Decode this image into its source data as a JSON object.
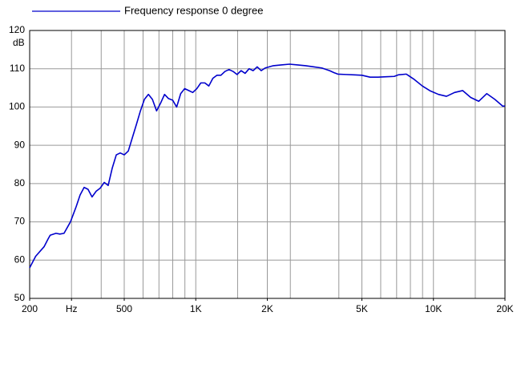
{
  "chart_data": {
    "type": "line",
    "xscale": "log",
    "y_label": "dB",
    "x": [
      200,
      212,
      230,
      239,
      244,
      258,
      268,
      279,
      297,
      314,
      326,
      339,
      352,
      366,
      381,
      396,
      412,
      428,
      445,
      463,
      481,
      500,
      520,
      541,
      563,
      585,
      608,
      632,
      657,
      684,
      711,
      739,
      768,
      799,
      831,
      864,
      898,
      934,
      971,
      1010,
      1050,
      1092,
      1135,
      1180,
      1227,
      1276,
      1327,
      1380,
      1435,
      1492,
      1551,
      1613,
      1677,
      1744,
      1813,
      1885,
      1960,
      2120,
      2290,
      2480,
      2680,
      2900,
      3130,
      3390,
      3660,
      3810,
      3960,
      4280,
      4630,
      5000,
      5410,
      5850,
      6320,
      6840,
      7110,
      7690,
      8310,
      8980,
      9710,
      10500,
      11350,
      12270,
      13270,
      14350,
      15510,
      16770,
      18130,
      19600,
      20000
    ],
    "series": [
      {
        "name": "Frequency response 0 degree",
        "color": "#0000cc",
        "values": [
          58,
          61,
          63.5,
          65.5,
          66.5,
          67,
          66.8,
          67,
          70,
          74,
          77,
          79,
          78.5,
          76.5,
          78,
          78.8,
          80.3,
          79.5,
          84,
          87.5,
          88,
          87.5,
          88.5,
          92,
          95.5,
          99,
          102,
          103.3,
          102,
          99,
          101,
          103.3,
          102.2,
          101.8,
          100,
          103.5,
          104.8,
          104.3,
          103.8,
          104.8,
          106.3,
          106.3,
          105.5,
          107.5,
          108.3,
          108.3,
          109.3,
          109.8,
          109.3,
          108.5,
          109.5,
          108.8,
          110,
          109.5,
          110.5,
          109.5,
          110.2,
          110.8,
          111,
          111.2,
          111,
          110.8,
          110.5,
          110.2,
          109.5,
          109,
          108.6,
          108.5,
          108.4,
          108.3,
          107.8,
          107.8,
          107.9,
          108,
          108.4,
          108.6,
          107.2,
          105.5,
          104.2,
          103.3,
          102.8,
          103.8,
          104.3,
          102.5,
          101.5,
          103.5,
          102,
          100.2,
          100.3
        ]
      }
    ],
    "xlim": [
      200,
      20000
    ],
    "xticks": [
      200,
      {
        "value": 300,
        "label": "Hz"
      },
      500,
      {
        "value": 1000,
        "label": "1K"
      },
      {
        "value": 2000,
        "label": "2K"
      },
      {
        "value": 5000,
        "label": "5K"
      },
      {
        "value": 10000,
        "label": "10K"
      },
      {
        "value": 20000,
        "label": "20K"
      }
    ],
    "xgrid": [
      300,
      400,
      500,
      600,
      700,
      800,
      900,
      1000,
      1500,
      2000,
      2500,
      4000,
      5000,
      6000,
      7000,
      8000,
      9000,
      10000,
      15000
    ],
    "ylim": [
      50,
      120
    ],
    "yticks": [
      50,
      60,
      70,
      80,
      90,
      100,
      110,
      120
    ],
    "grid": true
  }
}
